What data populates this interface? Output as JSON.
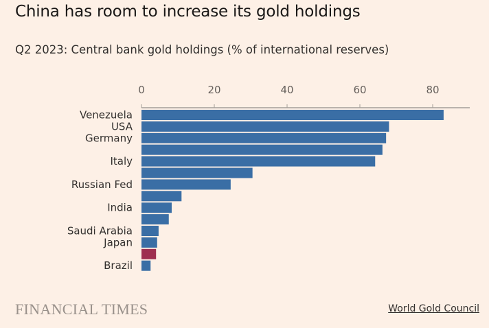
{
  "header": {
    "title": "China has room to increase its gold holdings",
    "subtitle": "Q2 2023: Central bank gold holdings (% of international reserves)"
  },
  "footer": {
    "brand": "FINANCIAL TIMES",
    "source": "World Gold Council"
  },
  "colors": {
    "default_bar": "#3a6ea5",
    "highlight_bar": "#9e2f50",
    "axis": "#a49e98",
    "background": "#fdf0e6"
  },
  "chart_data": {
    "type": "bar",
    "orientation": "horizontal",
    "title": "China has room to increase its gold holdings",
    "subtitle": "Q2 2023: Central bank gold holdings (% of international reserves)",
    "xlim": [
      0,
      90
    ],
    "xticks": [
      0,
      20,
      40,
      60,
      80
    ],
    "xlabel": "",
    "ylabel": "",
    "grid": false,
    "legend": "none",
    "categories": [
      "Venezuela",
      "USA",
      "Germany",
      "",
      "Italy",
      "",
      "Russian Fed",
      "",
      "India",
      "",
      "Saudi Arabia",
      "Japan",
      "",
      "Brazil"
    ],
    "values": [
      83,
      68,
      67.2,
      66.2,
      64.2,
      30.5,
      24.5,
      11,
      8.3,
      7.5,
      4.7,
      4.3,
      4,
      2.5
    ],
    "highlight_index": 12
  }
}
